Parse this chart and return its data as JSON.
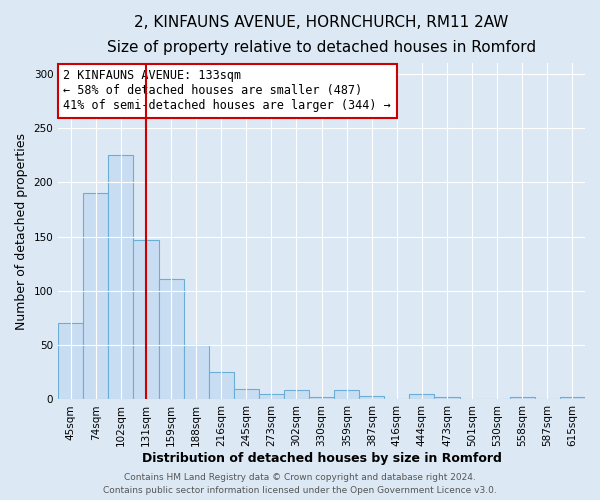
{
  "title": "2, KINFAUNS AVENUE, HORNCHURCH, RM11 2AW",
  "subtitle": "Size of property relative to detached houses in Romford",
  "xlabel": "Distribution of detached houses by size in Romford",
  "ylabel": "Number of detached properties",
  "bar_labels": [
    "45sqm",
    "74sqm",
    "102sqm",
    "131sqm",
    "159sqm",
    "188sqm",
    "216sqm",
    "245sqm",
    "273sqm",
    "302sqm",
    "330sqm",
    "359sqm",
    "387sqm",
    "416sqm",
    "444sqm",
    "473sqm",
    "501sqm",
    "530sqm",
    "558sqm",
    "587sqm",
    "615sqm"
  ],
  "bar_values": [
    70,
    190,
    225,
    147,
    111,
    50,
    25,
    10,
    5,
    9,
    2,
    9,
    3,
    0,
    5,
    2,
    0,
    0,
    2,
    0,
    2
  ],
  "bar_color": "#c9ddf2",
  "bar_edge_color": "#6aaed6",
  "vline_x": 3,
  "vline_color": "#cc0000",
  "annotation_text": "2 KINFAUNS AVENUE: 133sqm\n← 58% of detached houses are smaller (487)\n41% of semi-detached houses are larger (344) →",
  "annotation_box_color": "#ffffff",
  "annotation_box_edge": "#cc0000",
  "ylim": [
    0,
    310
  ],
  "yticks": [
    0,
    50,
    100,
    150,
    200,
    250,
    300
  ],
  "footer_line1": "Contains HM Land Registry data © Crown copyright and database right 2024.",
  "footer_line2": "Contains public sector information licensed under the Open Government Licence v3.0.",
  "bg_color": "#dce9f5",
  "plot_bg_color": "#dce9f5",
  "title_fontsize": 11,
  "subtitle_fontsize": 9.5,
  "axis_label_fontsize": 9,
  "tick_fontsize": 7.5,
  "annotation_fontsize": 8.5,
  "footer_fontsize": 6.5
}
